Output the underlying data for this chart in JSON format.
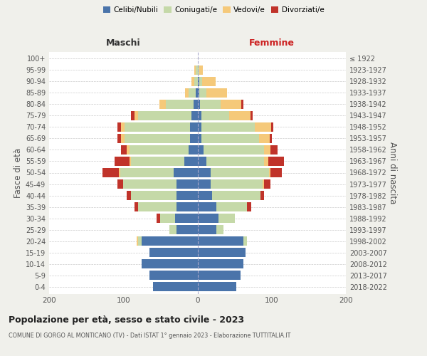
{
  "age_groups": [
    "0-4",
    "5-9",
    "10-14",
    "15-19",
    "20-24",
    "25-29",
    "30-34",
    "35-39",
    "40-44",
    "45-49",
    "50-54",
    "55-59",
    "60-64",
    "65-69",
    "70-74",
    "75-79",
    "80-84",
    "85-89",
    "90-94",
    "95-99",
    "100+"
  ],
  "birth_years": [
    "2018-2022",
    "2013-2017",
    "2008-2012",
    "2003-2007",
    "1998-2002",
    "1993-1997",
    "1988-1992",
    "1983-1987",
    "1978-1982",
    "1973-1977",
    "1968-1972",
    "1963-1967",
    "1958-1962",
    "1953-1957",
    "1948-1952",
    "1943-1947",
    "1938-1942",
    "1933-1937",
    "1928-1932",
    "1923-1927",
    "≤ 1922"
  ],
  "maschi_celibi": [
    60,
    65,
    75,
    65,
    75,
    28,
    30,
    28,
    28,
    28,
    32,
    18,
    12,
    10,
    10,
    8,
    5,
    2,
    0,
    0,
    0
  ],
  "maschi_coniugati": [
    0,
    0,
    0,
    0,
    5,
    10,
    20,
    52,
    62,
    72,
    72,
    72,
    80,
    88,
    88,
    72,
    38,
    10,
    4,
    2,
    0
  ],
  "maschi_vedovi": [
    0,
    0,
    0,
    0,
    2,
    0,
    0,
    0,
    0,
    0,
    2,
    2,
    3,
    5,
    5,
    5,
    8,
    5,
    4,
    2,
    0
  ],
  "maschi_divorziati": [
    0,
    0,
    0,
    0,
    0,
    0,
    5,
    5,
    5,
    8,
    22,
    20,
    8,
    5,
    5,
    5,
    0,
    0,
    0,
    0,
    0
  ],
  "femmine_nubili": [
    52,
    58,
    62,
    65,
    62,
    25,
    28,
    25,
    20,
    18,
    18,
    12,
    8,
    5,
    5,
    5,
    3,
    2,
    2,
    0,
    0
  ],
  "femmine_coniugate": [
    0,
    0,
    0,
    0,
    5,
    10,
    22,
    42,
    65,
    70,
    78,
    78,
    82,
    78,
    72,
    38,
    28,
    10,
    4,
    2,
    0
  ],
  "femmine_vedove": [
    0,
    0,
    0,
    0,
    0,
    0,
    0,
    0,
    0,
    2,
    2,
    5,
    8,
    14,
    22,
    28,
    28,
    28,
    18,
    5,
    0
  ],
  "femmine_divorziate": [
    0,
    0,
    0,
    0,
    0,
    0,
    0,
    5,
    5,
    8,
    16,
    22,
    10,
    3,
    3,
    3,
    3,
    0,
    0,
    0,
    0
  ],
  "colors": {
    "celibi": "#4a74aa",
    "coniugati": "#c5d9a8",
    "vedovi": "#f5c97a",
    "divorziati": "#c0332a"
  },
  "xlim": 200,
  "title": "Popolazione per età, sesso e stato civile - 2023",
  "subtitle": "COMUNE DI GORGO AL MONTICANO (TV) - Dati ISTAT 1° gennaio 2023 - Elaborazione TUTTITALIA.IT",
  "ylabel": "Fasce di età",
  "ylabel_right": "Anni di nascita",
  "maschi_label": "Maschi",
  "femmine_label": "Femmine",
  "legend_labels": [
    "Celibi/Nubili",
    "Coniugati/e",
    "Vedovi/e",
    "Divorziati/e"
  ],
  "bg_color": "#f0f0eb",
  "plot_bg_color": "#ffffff"
}
